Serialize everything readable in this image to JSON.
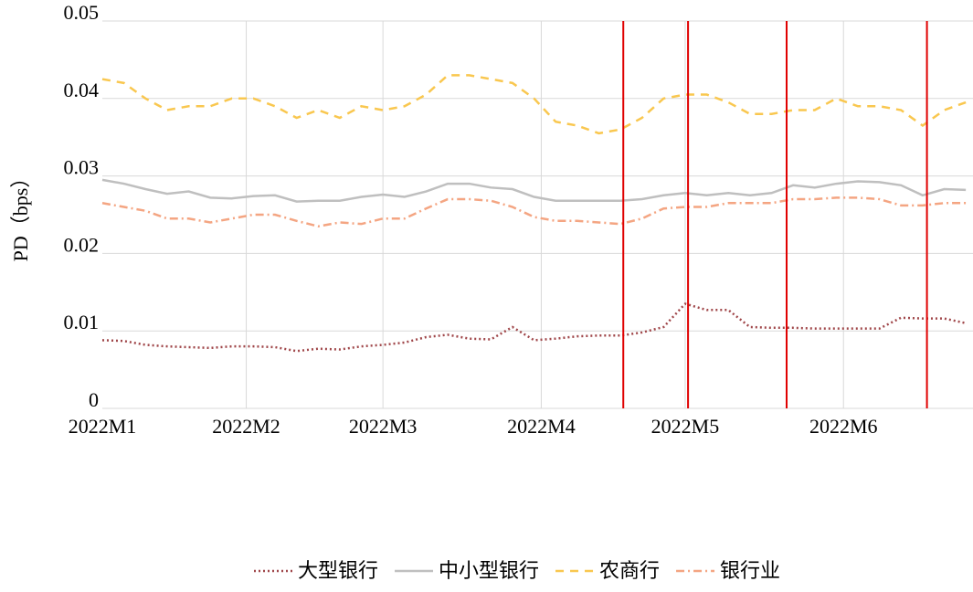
{
  "chart_data": {
    "type": "line",
    "ylabel": "PD（bps）",
    "x": [
      0,
      3,
      6,
      9,
      12,
      15,
      18,
      21,
      24,
      27,
      30,
      33,
      36,
      39,
      42,
      45,
      48,
      51,
      54,
      57,
      60,
      63,
      66,
      69,
      72,
      75,
      78,
      81,
      84,
      87,
      90,
      93,
      96,
      99,
      102,
      105,
      108,
      111,
      114,
      117,
      120
    ],
    "xlim": [
      0,
      121
    ],
    "xticks": [
      {
        "value": 0,
        "label": "2022M1"
      },
      {
        "value": 20,
        "label": "2022M2"
      },
      {
        "value": 39,
        "label": "2022M3"
      },
      {
        "value": 61,
        "label": "2022M4"
      },
      {
        "value": 81,
        "label": "2022M5"
      },
      {
        "value": 103,
        "label": "2022M6"
      }
    ],
    "ylim": [
      0,
      0.05
    ],
    "yticks": [
      0,
      0.01,
      0.02,
      0.03,
      0.04,
      0.05
    ],
    "grid": true,
    "legend": "bottom",
    "vlines": [
      72.4,
      81.4,
      95.1,
      114.6
    ],
    "vline_color": "#e00000",
    "series": [
      {
        "name": "大型银行",
        "color": "#a0474a",
        "style": "dotted",
        "values": [
          0.0088,
          0.0087,
          0.0082,
          0.008,
          0.0079,
          0.0078,
          0.008,
          0.008,
          0.0079,
          0.0074,
          0.0077,
          0.0076,
          0.008,
          0.0082,
          0.0085,
          0.0092,
          0.0095,
          0.009,
          0.0089,
          0.0105,
          0.0088,
          0.009,
          0.0093,
          0.0094,
          0.0094,
          0.0098,
          0.0105,
          0.0135,
          0.0127,
          0.0127,
          0.0105,
          0.0104,
          0.0104,
          0.0103,
          0.0103,
          0.0103,
          0.0103,
          0.0117,
          0.0116,
          0.0116,
          0.011
        ]
      },
      {
        "name": "中小型银行",
        "color": "#bfbfbf",
        "style": "solid",
        "values": [
          0.0295,
          0.029,
          0.0283,
          0.0277,
          0.028,
          0.0272,
          0.0271,
          0.0274,
          0.0275,
          0.0267,
          0.0268,
          0.0268,
          0.0273,
          0.0276,
          0.0273,
          0.028,
          0.029,
          0.029,
          0.0285,
          0.0283,
          0.0273,
          0.0268,
          0.0268,
          0.0268,
          0.0268,
          0.027,
          0.0275,
          0.0278,
          0.0275,
          0.0278,
          0.0275,
          0.0278,
          0.0288,
          0.0285,
          0.029,
          0.0293,
          0.0292,
          0.0288,
          0.0275,
          0.0283,
          0.0282
        ]
      },
      {
        "name": "农商行",
        "color": "#f9c74f",
        "style": "dashed",
        "values": [
          0.0425,
          0.042,
          0.04,
          0.0385,
          0.039,
          0.039,
          0.04,
          0.04,
          0.039,
          0.0375,
          0.0385,
          0.0375,
          0.039,
          0.0385,
          0.039,
          0.0405,
          0.043,
          0.043,
          0.0425,
          0.042,
          0.04,
          0.037,
          0.0365,
          0.0355,
          0.036,
          0.0375,
          0.04,
          0.0405,
          0.0405,
          0.0395,
          0.038,
          0.038,
          0.0385,
          0.0385,
          0.04,
          0.039,
          0.039,
          0.0385,
          0.0365,
          0.0385,
          0.0395
        ]
      },
      {
        "name": "银行业",
        "color": "#f4a582",
        "style": "dashdot",
        "values": [
          0.0265,
          0.026,
          0.0255,
          0.0245,
          0.0245,
          0.024,
          0.0245,
          0.025,
          0.025,
          0.0242,
          0.0235,
          0.024,
          0.0238,
          0.0245,
          0.0245,
          0.0258,
          0.027,
          0.027,
          0.0268,
          0.026,
          0.0247,
          0.0242,
          0.0242,
          0.024,
          0.0238,
          0.0245,
          0.0258,
          0.026,
          0.026,
          0.0265,
          0.0265,
          0.0265,
          0.027,
          0.027,
          0.0272,
          0.0272,
          0.027,
          0.0262,
          0.0262,
          0.0265,
          0.0265
        ]
      }
    ]
  }
}
